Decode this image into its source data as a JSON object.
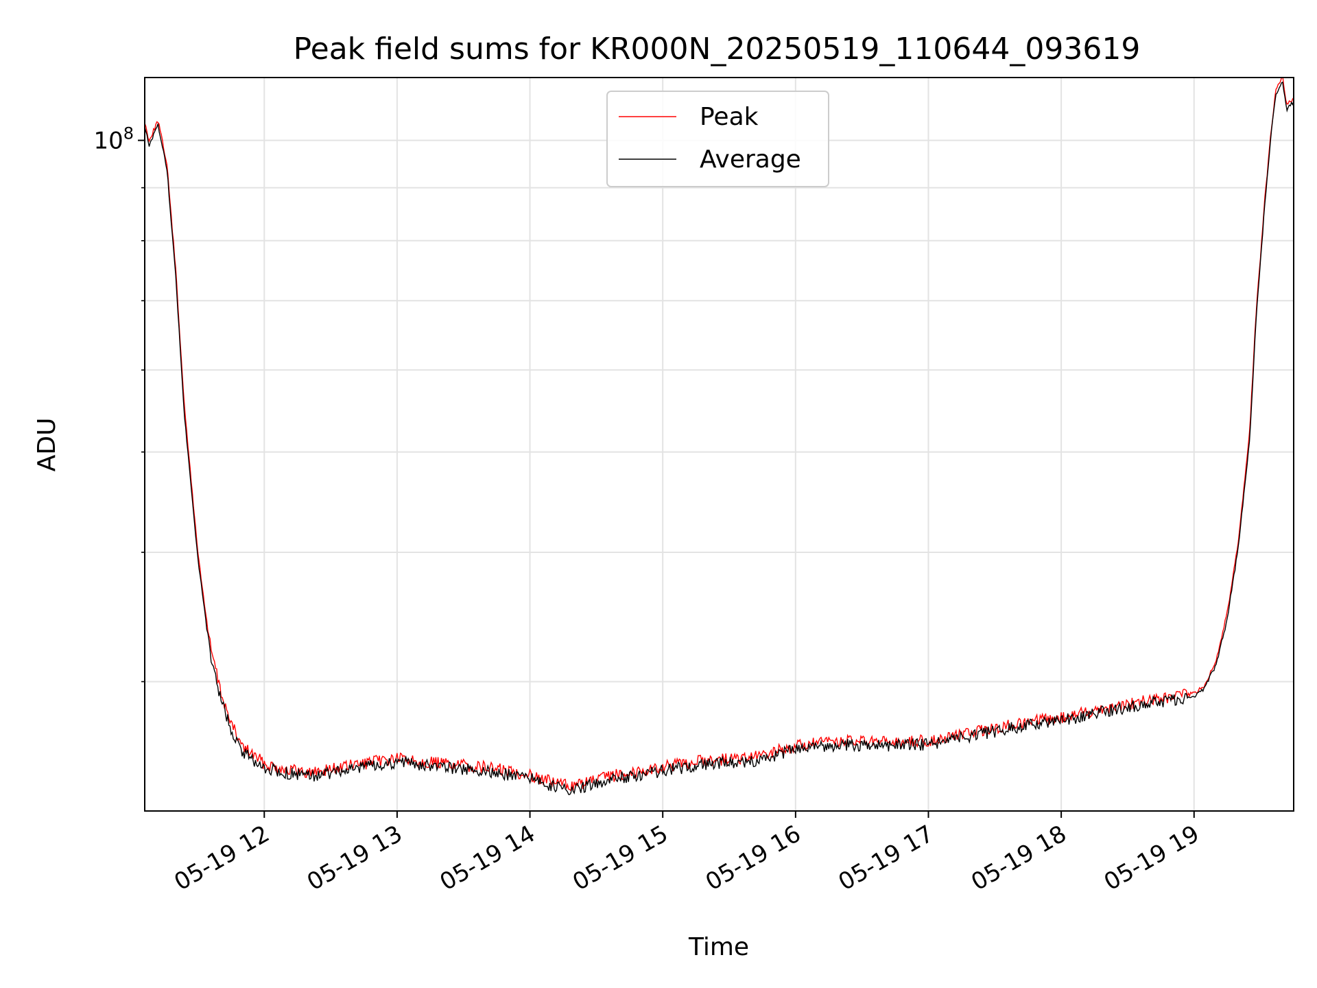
{
  "chart_data": {
    "type": "line",
    "title": "Peak field sums for KR000N_20250519_110644_093619",
    "xlabel": "Time",
    "ylabel": "ADU",
    "y_scale": "log",
    "ylim": [
      22500000,
      115000000
    ],
    "xlim": [
      "2025-05-19 11:06",
      "2025-05-19 19:45"
    ],
    "grid": true,
    "legend_position": "upper center",
    "x_ticks": [
      {
        "t": "2025-05-19 12:00",
        "label": "05-19 12"
      },
      {
        "t": "2025-05-19 13:00",
        "label": "05-19 13"
      },
      {
        "t": "2025-05-19 14:00",
        "label": "05-19 14"
      },
      {
        "t": "2025-05-19 15:00",
        "label": "05-19 15"
      },
      {
        "t": "2025-05-19 16:00",
        "label": "05-19 16"
      },
      {
        "t": "2025-05-19 17:00",
        "label": "05-19 17"
      },
      {
        "t": "2025-05-19 18:00",
        "label": "05-19 18"
      },
      {
        "t": "2025-05-19 19:00",
        "label": "05-19 19"
      }
    ],
    "y_ticks": [
      {
        "value": 100000000,
        "base": "10",
        "exp": "8"
      }
    ],
    "series": [
      {
        "name": "Peak",
        "color": "#ff0000",
        "x": [
          "2025-05-19 11:06",
          "2025-05-19 11:08",
          "2025-05-19 11:12",
          "2025-05-19 11:16",
          "2025-05-19 11:20",
          "2025-05-19 11:24",
          "2025-05-19 11:30",
          "2025-05-19 11:35",
          "2025-05-19 11:40",
          "2025-05-19 11:45",
          "2025-05-19 11:50",
          "2025-05-19 11:55",
          "2025-05-19 12:00",
          "2025-05-19 12:10",
          "2025-05-19 12:20",
          "2025-05-19 12:40",
          "2025-05-19 13:00",
          "2025-05-19 13:20",
          "2025-05-19 13:40",
          "2025-05-19 14:00",
          "2025-05-19 14:10",
          "2025-05-19 14:20",
          "2025-05-19 14:40",
          "2025-05-19 15:00",
          "2025-05-19 15:20",
          "2025-05-19 15:40",
          "2025-05-19 16:00",
          "2025-05-19 16:20",
          "2025-05-19 16:40",
          "2025-05-19 17:00",
          "2025-05-19 17:20",
          "2025-05-19 17:40",
          "2025-05-19 18:00",
          "2025-05-19 18:20",
          "2025-05-19 18:40",
          "2025-05-19 19:00",
          "2025-05-19 19:05",
          "2025-05-19 19:10",
          "2025-05-19 19:15",
          "2025-05-19 19:20",
          "2025-05-19 19:25",
          "2025-05-19 19:28",
          "2025-05-19 19:32",
          "2025-05-19 19:35",
          "2025-05-19 19:37",
          "2025-05-19 19:40",
          "2025-05-19 19:42",
          "2025-05-19 19:45"
        ],
        "y": [
          104000000,
          100000000,
          104500000,
          95000000,
          75000000,
          55000000,
          40000000,
          33000000,
          29500000,
          27300000,
          26000000,
          25500000,
          25000000,
          24700000,
          24500000,
          24900000,
          25300000,
          25000000,
          24800000,
          24400000,
          24000000,
          23800000,
          24400000,
          24800000,
          25200000,
          25300000,
          26000000,
          26300000,
          26200000,
          26300000,
          26800000,
          27300000,
          27700000,
          28300000,
          28800000,
          29200000,
          29800000,
          31500000,
          35000000,
          41000000,
          52000000,
          68000000,
          88000000,
          103000000,
          112000000,
          115000000,
          108000000,
          110000000
        ]
      },
      {
        "name": "Average",
        "color": "#000000",
        "x": [
          "2025-05-19 11:06",
          "2025-05-19 11:08",
          "2025-05-19 11:12",
          "2025-05-19 11:16",
          "2025-05-19 11:20",
          "2025-05-19 11:24",
          "2025-05-19 11:30",
          "2025-05-19 11:35",
          "2025-05-19 11:40",
          "2025-05-19 11:45",
          "2025-05-19 11:50",
          "2025-05-19 11:55",
          "2025-05-19 12:00",
          "2025-05-19 12:10",
          "2025-05-19 12:20",
          "2025-05-19 12:40",
          "2025-05-19 13:00",
          "2025-05-19 13:20",
          "2025-05-19 13:40",
          "2025-05-19 14:00",
          "2025-05-19 14:10",
          "2025-05-19 14:20",
          "2025-05-19 14:40",
          "2025-05-19 15:00",
          "2025-05-19 15:20",
          "2025-05-19 15:40",
          "2025-05-19 16:00",
          "2025-05-19 16:20",
          "2025-05-19 16:40",
          "2025-05-19 17:00",
          "2025-05-19 17:20",
          "2025-05-19 17:40",
          "2025-05-19 18:00",
          "2025-05-19 18:20",
          "2025-05-19 18:40",
          "2025-05-19 19:00",
          "2025-05-19 19:05",
          "2025-05-19 19:10",
          "2025-05-19 19:15",
          "2025-05-19 19:20",
          "2025-05-19 19:25",
          "2025-05-19 19:28",
          "2025-05-19 19:32",
          "2025-05-19 19:35",
          "2025-05-19 19:37",
          "2025-05-19 19:40",
          "2025-05-19 19:42",
          "2025-05-19 19:45"
        ],
        "y": [
          103000000,
          99000000,
          103500000,
          94000000,
          74000000,
          54000000,
          39500000,
          32500000,
          29000000,
          27000000,
          25700000,
          25200000,
          24800000,
          24500000,
          24300000,
          24700000,
          25100000,
          24800000,
          24600000,
          24200000,
          23800000,
          23600000,
          24200000,
          24600000,
          25000000,
          25100000,
          25800000,
          26100000,
          26000000,
          26100000,
          26600000,
          27100000,
          27500000,
          28100000,
          28600000,
          29000000,
          29600000,
          31200000,
          34500000,
          40500000,
          51000000,
          67000000,
          87000000,
          102000000,
          111000000,
          114000000,
          107000000,
          109000000
        ]
      }
    ]
  }
}
